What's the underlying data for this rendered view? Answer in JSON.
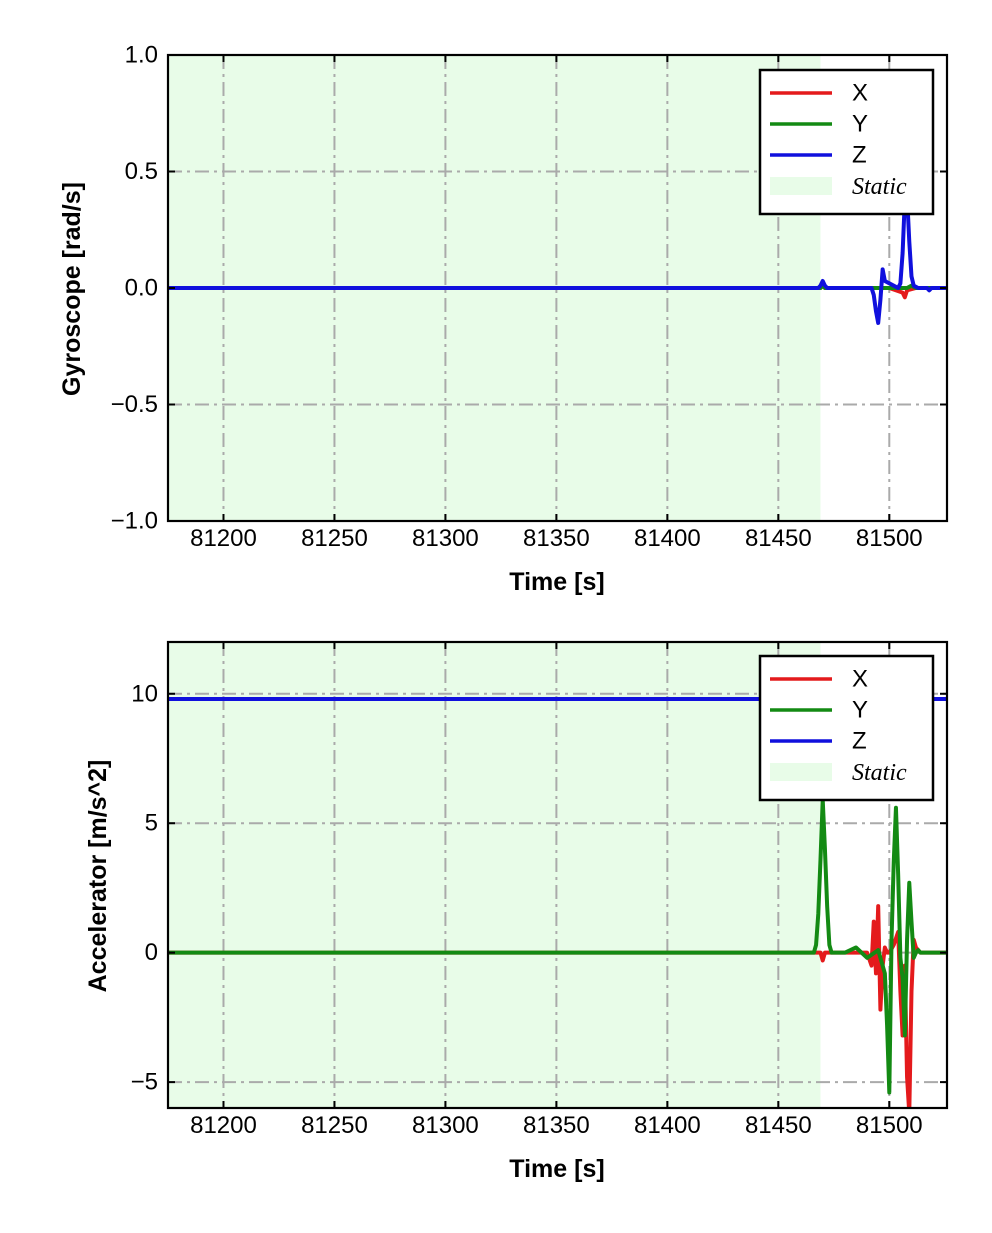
{
  "chart_data": [
    {
      "type": "line",
      "title": "",
      "xlabel": "Time [s]",
      "ylabel": "Gyroscope [rad/s]",
      "xlim": [
        81175,
        81526
      ],
      "ylim": [
        -1.0,
        1.0
      ],
      "xticks": [
        81200,
        81250,
        81300,
        81350,
        81400,
        81450,
        81500
      ],
      "yticks": [
        -1.0,
        -0.5,
        0.0,
        0.5,
        1.0
      ],
      "xtick_labels": [
        "81200",
        "81250",
        "81300",
        "81350",
        "81400",
        "81450",
        "81500"
      ],
      "ytick_labels": [
        "−1.0",
        "−0.5",
        "0.0",
        "0.5",
        "1.0"
      ],
      "grid": true,
      "legend_position": "top-right",
      "static_region": {
        "label": "Static",
        "x_start": 81175,
        "x_end": 81469,
        "color": "#e8fce8"
      },
      "series": [
        {
          "name": "X",
          "color": "#e41a1c",
          "x": [
            81175,
            81469,
            81470,
            81471,
            81490,
            81500,
            81506,
            81507,
            81508,
            81512,
            81526
          ],
          "y": [
            0,
            0,
            0.01,
            0,
            0,
            0,
            -0.02,
            -0.04,
            -0.01,
            0,
            0
          ]
        },
        {
          "name": "Y",
          "color": "#138a13",
          "x": [
            81175,
            81469,
            81470,
            81471,
            81500,
            81508,
            81510,
            81512,
            81526
          ],
          "y": [
            0,
            0,
            0.02,
            0,
            0,
            0,
            0.01,
            0,
            0
          ]
        },
        {
          "name": "Z",
          "color": "#1010dd",
          "x": [
            81175,
            81468,
            81469,
            81470,
            81471,
            81472,
            81492,
            81493,
            81494,
            81495,
            81496,
            81497,
            81498,
            81504,
            81505,
            81506,
            81507,
            81508,
            81509,
            81510,
            81511,
            81513,
            81517,
            81518,
            81519,
            81526
          ],
          "y": [
            0,
            0,
            0.01,
            0.03,
            0.01,
            0,
            0,
            -0.03,
            -0.1,
            -0.15,
            -0.05,
            0.08,
            0.03,
            0,
            0.02,
            0.15,
            0.38,
            0.4,
            0.2,
            0.05,
            0.01,
            0,
            0,
            -0.01,
            0,
            0
          ]
        }
      ]
    },
    {
      "type": "line",
      "title": "",
      "xlabel": "Time [s]",
      "ylabel": "Accelerator [m/s^2]",
      "xlim": [
        81175,
        81526
      ],
      "ylim": [
        -6,
        12
      ],
      "xticks": [
        81200,
        81250,
        81300,
        81350,
        81400,
        81450,
        81500
      ],
      "yticks": [
        -5,
        0,
        5,
        10
      ],
      "xtick_labels": [
        "81200",
        "81250",
        "81300",
        "81350",
        "81400",
        "81450",
        "81500"
      ],
      "ytick_labels": [
        "−5",
        "0",
        "5",
        "10"
      ],
      "grid": true,
      "legend_position": "top-right",
      "static_region": {
        "label": "Static",
        "x_start": 81175,
        "x_end": 81469,
        "color": "#e8fce8"
      },
      "series": [
        {
          "name": "X",
          "color": "#e41a1c",
          "x": [
            81175,
            81469,
            81470,
            81471,
            81490,
            81492,
            81493,
            81494,
            81495,
            81496,
            81497,
            81498,
            81499,
            81500,
            81502,
            81504,
            81505,
            81506,
            81507,
            81508,
            81509,
            81510,
            81511,
            81512,
            81514,
            81526
          ],
          "y": [
            0,
            0,
            -0.3,
            0,
            0,
            -0.5,
            1.2,
            -0.8,
            1.8,
            -2.2,
            -0.5,
            0.2,
            0,
            0,
            0.3,
            0.8,
            -1.5,
            -3.2,
            -0.5,
            -4.8,
            -6.2,
            -1.5,
            0.5,
            0.2,
            0,
            0
          ]
        },
        {
          "name": "Y",
          "color": "#138a13",
          "x": [
            81175,
            81466,
            81467,
            81468,
            81469,
            81470,
            81471,
            81472,
            81473,
            81474,
            81480,
            81485,
            81490,
            81495,
            81498,
            81499,
            81500,
            81501,
            81502,
            81503,
            81504,
            81505,
            81506,
            81507,
            81508,
            81509,
            81510,
            81511,
            81512,
            81513,
            81514,
            81526
          ],
          "y": [
            0,
            0,
            0.3,
            1.5,
            3.6,
            5.9,
            4.0,
            1.8,
            0.3,
            0,
            0,
            0.2,
            -0.2,
            0.1,
            -0.8,
            -2.8,
            -5.4,
            0.5,
            3.5,
            5.6,
            3.0,
            -0.2,
            -1.0,
            -3.2,
            0.5,
            2.7,
            1.2,
            -0.2,
            0,
            0.1,
            0,
            0
          ]
        },
        {
          "name": "Z",
          "color": "#1010dd",
          "x": [
            81175,
            81526
          ],
          "y": [
            9.8,
            9.8
          ]
        }
      ]
    }
  ]
}
